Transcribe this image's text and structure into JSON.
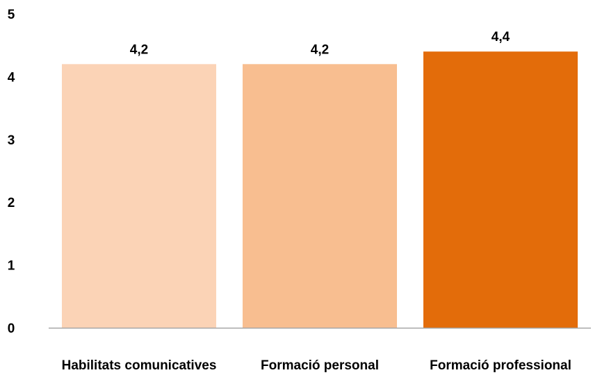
{
  "chart_data": {
    "type": "bar",
    "title": "",
    "xlabel": "",
    "ylabel": "",
    "categories": [
      "Habilitats comunicatives",
      "Formació personal",
      "Formació professional"
    ],
    "values": [
      4.2,
      4.2,
      4.4
    ],
    "data_labels": [
      "4,2",
      "4,2",
      "4,4"
    ],
    "bar_colors": [
      "#FBD3B6",
      "#F8BE90",
      "#E36C0A"
    ],
    "ylim": [
      0,
      5
    ],
    "yticks": [
      0,
      1,
      2,
      3,
      4,
      5
    ],
    "ytick_labels": [
      "0",
      "1",
      "2",
      "3",
      "4",
      "5"
    ],
    "grid": false,
    "legend": "none",
    "axis_color": "#A6A6A6"
  }
}
